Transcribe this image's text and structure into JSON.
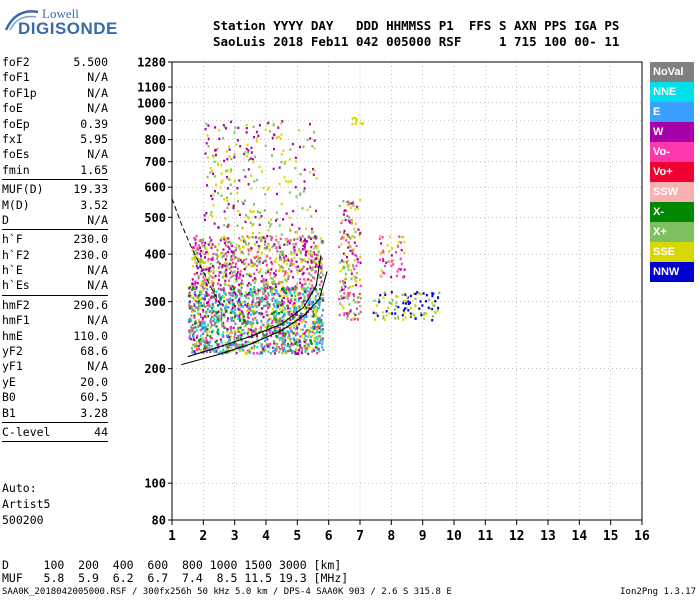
{
  "logo": {
    "line1": "Lowell",
    "line2": "DIGISONDE"
  },
  "header": {
    "line1": "Station YYYY DAY   DDD HHMMSS P1  FFS S AXN PPS IGA PS",
    "line2": "SaoLuis 2018 Feb11 042 005000 RSF     1 715 100 00- 11"
  },
  "params_group1": [
    {
      "label": "foF2",
      "value": "5.500"
    },
    {
      "label": "foF1",
      "value": "N/A"
    },
    {
      "label": "foF1p",
      "value": "N/A"
    },
    {
      "label": "foE",
      "value": "N/A"
    },
    {
      "label": "foEp",
      "value": "0.39"
    },
    {
      "label": "fxI",
      "value": "5.95"
    },
    {
      "label": "foEs",
      "value": "N/A"
    },
    {
      "label": "fmin",
      "value": "1.65"
    }
  ],
  "params_group2": [
    {
      "label": "MUF(D)",
      "value": "19.33"
    },
    {
      "label": "M(D)",
      "value": "3.52"
    },
    {
      "label": "D",
      "value": "N/A"
    }
  ],
  "params_group3": [
    {
      "label": "h`F",
      "value": "230.0"
    },
    {
      "label": "h`F2",
      "value": "230.0"
    },
    {
      "label": "h`E",
      "value": "N/A"
    },
    {
      "label": "h`Es",
      "value": "N/A"
    }
  ],
  "params_group4": [
    {
      "label": "hmF2",
      "value": "290.6"
    },
    {
      "label": "hmF1",
      "value": "N/A"
    },
    {
      "label": "hmE",
      "value": "110.0"
    },
    {
      "label": "yF2",
      "value": "68.6"
    },
    {
      "label": "yF1",
      "value": "N/A"
    },
    {
      "label": "yE",
      "value": "20.0"
    },
    {
      "label": "B0",
      "value": "60.5"
    },
    {
      "label": "B1",
      "value": "3.28"
    }
  ],
  "params_group5": [
    {
      "label": "C-level",
      "value": "44"
    }
  ],
  "extra": {
    "line1": "Auto:",
    "line2": "Artist5",
    "line3": "500200"
  },
  "dmuf": {
    "d_line": "D     100  200  400  600  800 1000 1500 3000 [km]",
    "muf_line": "MUF   5.8  5.9  6.2  6.7  7.4  8.5 11.5 19.3 [MHz]"
  },
  "footer": "SAA0K_2018042005000.RSF / 300fx256h 50 kHz 5.0 km / DPS-4 SAA0K 903 / 2.6 S 315.8 E",
  "version": "Ion2Png 1.3.17",
  "legend": [
    {
      "label": "NoVal",
      "color": "#808080"
    },
    {
      "label": "NNE",
      "color": "#00e0e8"
    },
    {
      "label": "E",
      "color": "#3aa0ff"
    },
    {
      "label": "W",
      "color": "#a800a8"
    },
    {
      "label": "Vo-",
      "color": "#ff38b0"
    },
    {
      "label": "Vo+",
      "color": "#f00030"
    },
    {
      "label": "SSW",
      "color": "#f8b0b0"
    },
    {
      "label": "X-",
      "color": "#008800"
    },
    {
      "label": "X+",
      "color": "#7cc060"
    },
    {
      "label": "SSE",
      "color": "#d8d800"
    },
    {
      "label": "NNW",
      "color": "#0000d0"
    }
  ],
  "chart_data": {
    "type": "scatter",
    "xlim": [
      1,
      16
    ],
    "ylim": [
      80,
      1280
    ],
    "y_scale": "log",
    "x_ticks": [
      "1",
      "2",
      "3",
      "4",
      "5",
      "6",
      "7",
      "8",
      "9",
      "10",
      "11",
      "12",
      "13",
      "14",
      "15",
      "16"
    ],
    "y_ticks": [
      "80",
      "100",
      "200",
      "300",
      "400",
      "500",
      "600",
      "700",
      "800",
      "900",
      "1000",
      "1100",
      "1280"
    ],
    "grid": "dotted",
    "ionogram_blobs": [
      {
        "x": [
          1.5,
          5.8
        ],
        "y": [
          220,
          330
        ],
        "density": 1.0,
        "colors": [
          "#d8d800",
          "#a800a8",
          "#ff38b0",
          "#008800",
          "#7cc060",
          "#00e0e8",
          "#3aa0ff",
          "#808080"
        ]
      },
      {
        "x": [
          1.6,
          5.8
        ],
        "y": [
          330,
          450
        ],
        "density": 0.6,
        "colors": [
          "#a800a8",
          "#d8d800",
          "#ff38b0",
          "#7cc060"
        ]
      },
      {
        "x": [
          2.0,
          5.6
        ],
        "y": [
          450,
          900
        ],
        "density": 0.12,
        "colors": [
          "#d8d800",
          "#a800a8",
          "#7cc060"
        ]
      },
      {
        "x": [
          6.3,
          7.0
        ],
        "y": [
          270,
          560
        ],
        "density": 0.4,
        "colors": [
          "#a800a8",
          "#d8d800",
          "#ff38b0",
          "#7cc060"
        ]
      },
      {
        "x": [
          7.4,
          9.5
        ],
        "y": [
          270,
          320
        ],
        "density": 0.35,
        "colors": [
          "#d8d800",
          "#0000d0",
          "#7cc060"
        ]
      },
      {
        "x": [
          7.6,
          8.4
        ],
        "y": [
          350,
          450
        ],
        "density": 0.3,
        "colors": [
          "#d8d800",
          "#a800a8",
          "#ff38b0"
        ]
      },
      {
        "x": [
          6.7,
          7.1
        ],
        "y": [
          880,
          920
        ],
        "density": 0.7,
        "colors": [
          "#d8d800"
        ]
      }
    ],
    "trace_o": {
      "x": [
        1.5,
        2.5,
        3.5,
        4.5,
        5.2,
        5.6,
        5.75
      ],
      "y": [
        215,
        228,
        243,
        262,
        290,
        330,
        395
      ]
    },
    "trace_x": {
      "x": [
        1.3,
        2.5,
        3.5,
        4.5,
        5.2,
        5.7,
        5.95
      ],
      "y": [
        205,
        218,
        232,
        252,
        275,
        305,
        360
      ]
    },
    "profile": {
      "x": [
        1.0,
        1.3,
        1.6,
        2.0,
        2.3,
        2.6
      ],
      "y": [
        560,
        480,
        420,
        360,
        320,
        290
      ]
    }
  }
}
